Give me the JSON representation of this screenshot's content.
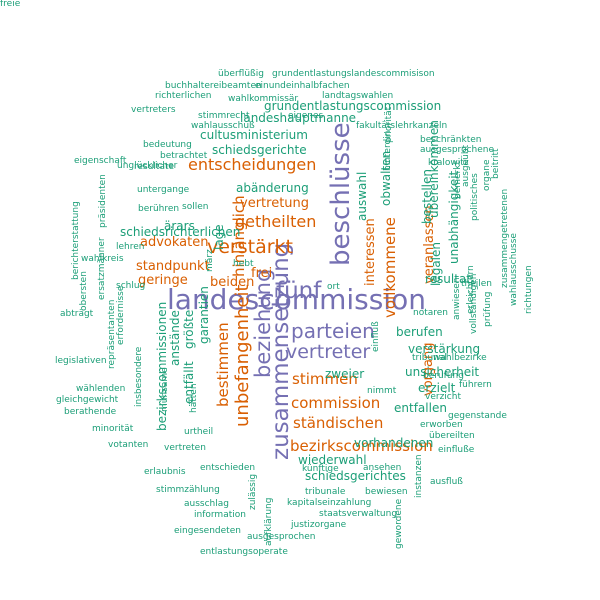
{
  "palette": {
    "teal": "#1b9e77",
    "orange": "#d95f02",
    "purple": "#7570b3"
  },
  "words": [
    {
      "text": "landescommission",
      "color": "purple"
    },
    {
      "text": "beschlüsse",
      "color": "purple"
    },
    {
      "text": "zusammensetzung",
      "color": "purple"
    },
    {
      "text": "fünf",
      "color": "purple"
    },
    {
      "text": "beziehung",
      "color": "purple"
    },
    {
      "text": "parteien",
      "color": "purple"
    },
    {
      "text": "vertreter",
      "color": "purple"
    },
    {
      "text": "verstärkt",
      "color": "orange"
    },
    {
      "text": "unbefangenheit",
      "color": "orange"
    },
    {
      "text": "entscheidungen",
      "color": "orange"
    },
    {
      "text": "getheilten",
      "color": "orange"
    },
    {
      "text": "vollkommene",
      "color": "orange"
    },
    {
      "text": "hinlänglich",
      "color": "orange"
    },
    {
      "text": "bestimmen",
      "color": "orange"
    },
    {
      "text": "stimmen",
      "color": "orange"
    },
    {
      "text": "commission",
      "color": "orange"
    },
    {
      "text": "ständischen",
      "color": "orange"
    },
    {
      "text": "bezirkscommission",
      "color": "orange"
    },
    {
      "text": "vertretung",
      "color": "orange"
    },
    {
      "text": "advokaten",
      "color": "orange"
    },
    {
      "text": "standpunkt",
      "color": "orange"
    },
    {
      "text": "geringe",
      "color": "orange"
    },
    {
      "text": "beiden",
      "color": "orange"
    },
    {
      "text": "frei",
      "color": "orange"
    },
    {
      "text": "vorgang",
      "color": "orange"
    },
    {
      "text": "interessen",
      "color": "orange"
    },
    {
      "text": "veranlassen",
      "color": "orange"
    },
    {
      "text": "abänderung",
      "color": "teal"
    },
    {
      "text": "landeshauptmanne",
      "color": "teal"
    },
    {
      "text": "grundentlastungscommission",
      "color": "teal"
    },
    {
      "text": "cultusministerium",
      "color": "teal"
    },
    {
      "text": "schiedsgerichte",
      "color": "teal"
    },
    {
      "text": "schiedsrichterlichen",
      "color": "teal"
    },
    {
      "text": "resultat",
      "color": "teal"
    },
    {
      "text": "legalen",
      "color": "teal"
    },
    {
      "text": "bestellen",
      "color": "teal"
    },
    {
      "text": "übereinkommen",
      "color": "teal"
    },
    {
      "text": "unabhängigkeit",
      "color": "teal"
    },
    {
      "text": "auswahl",
      "color": "teal"
    },
    {
      "text": "obwalten",
      "color": "teal"
    },
    {
      "text": "berufen",
      "color": "teal"
    },
    {
      "text": "verstärkung",
      "color": "teal"
    },
    {
      "text": "unsicherheit",
      "color": "teal"
    },
    {
      "text": "entfallen",
      "color": "teal"
    },
    {
      "text": "erzielt",
      "color": "teal"
    },
    {
      "text": "zweier",
      "color": "teal"
    },
    {
      "text": "vorhandenen",
      "color": "teal"
    },
    {
      "text": "wiederwahl",
      "color": "teal"
    },
    {
      "text": "schiedsgerichtes",
      "color": "teal"
    },
    {
      "text": "bezirkscommissionen",
      "color": "teal"
    },
    {
      "text": "anstände",
      "color": "teal"
    },
    {
      "text": "größte",
      "color": "teal"
    },
    {
      "text": "garantien",
      "color": "teal"
    },
    {
      "text": "entfällt",
      "color": "teal"
    },
    {
      "text": "lage",
      "color": "teal"
    },
    {
      "text": "ärars",
      "color": "teal"
    },
    {
      "text": "überflüßig",
      "color": "teal"
    },
    {
      "text": "grundentlastungslandescommisison",
      "color": "teal"
    },
    {
      "text": "buchhaltereibeamten",
      "color": "teal"
    },
    {
      "text": "einundeinhalbfachen",
      "color": "teal"
    },
    {
      "text": "richterlichen",
      "color": "teal"
    },
    {
      "text": "wahlkommissär",
      "color": "teal"
    },
    {
      "text": "landtagswahlen",
      "color": "teal"
    },
    {
      "text": "vertreters",
      "color": "teal"
    },
    {
      "text": "stimmrecht",
      "color": "teal"
    },
    {
      "text": "eigenes",
      "color": "teal"
    },
    {
      "text": "wahlausschuß",
      "color": "teal"
    },
    {
      "text": "fakultätslehrkanzeln",
      "color": "teal"
    },
    {
      "text": "bedeutung",
      "color": "teal"
    },
    {
      "text": "beschränkten",
      "color": "teal"
    },
    {
      "text": "betrachtet",
      "color": "teal"
    },
    {
      "text": "ausgesprochene",
      "color": "teal"
    },
    {
      "text": "eigenschaft",
      "color": "teal"
    },
    {
      "text": "unglücklicher",
      "color": "teal"
    },
    {
      "text": "resultate",
      "color": "teal"
    },
    {
      "text": "kralowitz",
      "color": "teal"
    },
    {
      "text": "untergange",
      "color": "teal"
    },
    {
      "text": "sollen",
      "color": "teal"
    },
    {
      "text": "berühren",
      "color": "teal"
    },
    {
      "text": "präsidenten",
      "color": "teal"
    },
    {
      "text": "lehren",
      "color": "teal"
    },
    {
      "text": "wahlkreis",
      "color": "teal"
    },
    {
      "text": "schlug",
      "color": "teal"
    },
    {
      "text": "berichterstattung",
      "color": "teal"
    },
    {
      "text": "erfordernisse",
      "color": "teal"
    },
    {
      "text": "ersatzmänner",
      "color": "teal"
    },
    {
      "text": "obersten",
      "color": "teal"
    },
    {
      "text": "repräsentanten",
      "color": "teal"
    },
    {
      "text": "abträgt",
      "color": "teal"
    },
    {
      "text": "insbesondere",
      "color": "teal"
    },
    {
      "text": "legislativen",
      "color": "teal"
    },
    {
      "text": "wählenden",
      "color": "teal"
    },
    {
      "text": "gleichgewicht",
      "color": "teal"
    },
    {
      "text": "berathende",
      "color": "teal"
    },
    {
      "text": "minorität",
      "color": "teal"
    },
    {
      "text": "votanten",
      "color": "teal"
    },
    {
      "text": "erlaubnis",
      "color": "teal"
    },
    {
      "text": "stimmzählung",
      "color": "teal"
    },
    {
      "text": "ausschlag",
      "color": "teal"
    },
    {
      "text": "information",
      "color": "teal"
    },
    {
      "text": "eingesendeten",
      "color": "teal"
    },
    {
      "text": "entlastungsoperate",
      "color": "teal"
    },
    {
      "text": "mühsame",
      "color": "teal"
    },
    {
      "text": "hätten",
      "color": "teal"
    },
    {
      "text": "urtheil",
      "color": "teal"
    },
    {
      "text": "vertreten",
      "color": "teal"
    },
    {
      "text": "entschieden",
      "color": "teal"
    },
    {
      "text": "zulässig",
      "color": "teal"
    },
    {
      "text": "aufklärung",
      "color": "teal"
    },
    {
      "text": "ausgesprochen",
      "color": "teal"
    },
    {
      "text": "justizorgane",
      "color": "teal"
    },
    {
      "text": "kapitalseinzahlung",
      "color": "teal"
    },
    {
      "text": "staatsverwaltung",
      "color": "teal"
    },
    {
      "text": "tribunale",
      "color": "teal"
    },
    {
      "text": "bewiesen",
      "color": "teal"
    },
    {
      "text": "künftige",
      "color": "teal"
    },
    {
      "text": "ansehen",
      "color": "teal"
    },
    {
      "text": "gewordene",
      "color": "teal"
    },
    {
      "text": "instanzen",
      "color": "teal"
    },
    {
      "text": "ausfluß",
      "color": "teal"
    },
    {
      "text": "einfluße",
      "color": "teal"
    },
    {
      "text": "erworben",
      "color": "teal"
    },
    {
      "text": "übereilten",
      "color": "teal"
    },
    {
      "text": "gegenstande",
      "color": "teal"
    },
    {
      "text": "verzicht",
      "color": "teal"
    },
    {
      "text": "führern",
      "color": "teal"
    },
    {
      "text": "berufung",
      "color": "teal"
    },
    {
      "text": "tribunal",
      "color": "teal"
    },
    {
      "text": "nimmt",
      "color": "teal"
    },
    {
      "text": "wahlbezirke",
      "color": "teal"
    },
    {
      "text": "einfluß",
      "color": "teal"
    },
    {
      "text": "notaren",
      "color": "teal"
    },
    {
      "text": "anwiesen",
      "color": "teal"
    },
    {
      "text": "erleichtern",
      "color": "teal"
    },
    {
      "text": "theilen",
      "color": "teal"
    },
    {
      "text": "vollständigen",
      "color": "teal"
    },
    {
      "text": "prüfung",
      "color": "teal"
    },
    {
      "text": "zusammengetretenen",
      "color": "teal"
    },
    {
      "text": "wahlausschusse",
      "color": "teal"
    },
    {
      "text": "richtungen",
      "color": "teal"
    },
    {
      "text": "ausgeübt",
      "color": "teal"
    },
    {
      "text": "politisches",
      "color": "teal"
    },
    {
      "text": "organe",
      "color": "teal"
    },
    {
      "text": "beitritt",
      "color": "teal"
    },
    {
      "text": "bemerkt",
      "color": "teal"
    },
    {
      "text": "hinterdin",
      "color": "teal"
    },
    {
      "text": "priorität",
      "color": "teal"
    },
    {
      "text": "hebt",
      "color": "teal"
    },
    {
      "text": "märz",
      "color": "teal"
    },
    {
      "text": "ort",
      "color": "teal"
    },
    {
      "text": "freie",
      "color": "teal"
    }
  ]
}
